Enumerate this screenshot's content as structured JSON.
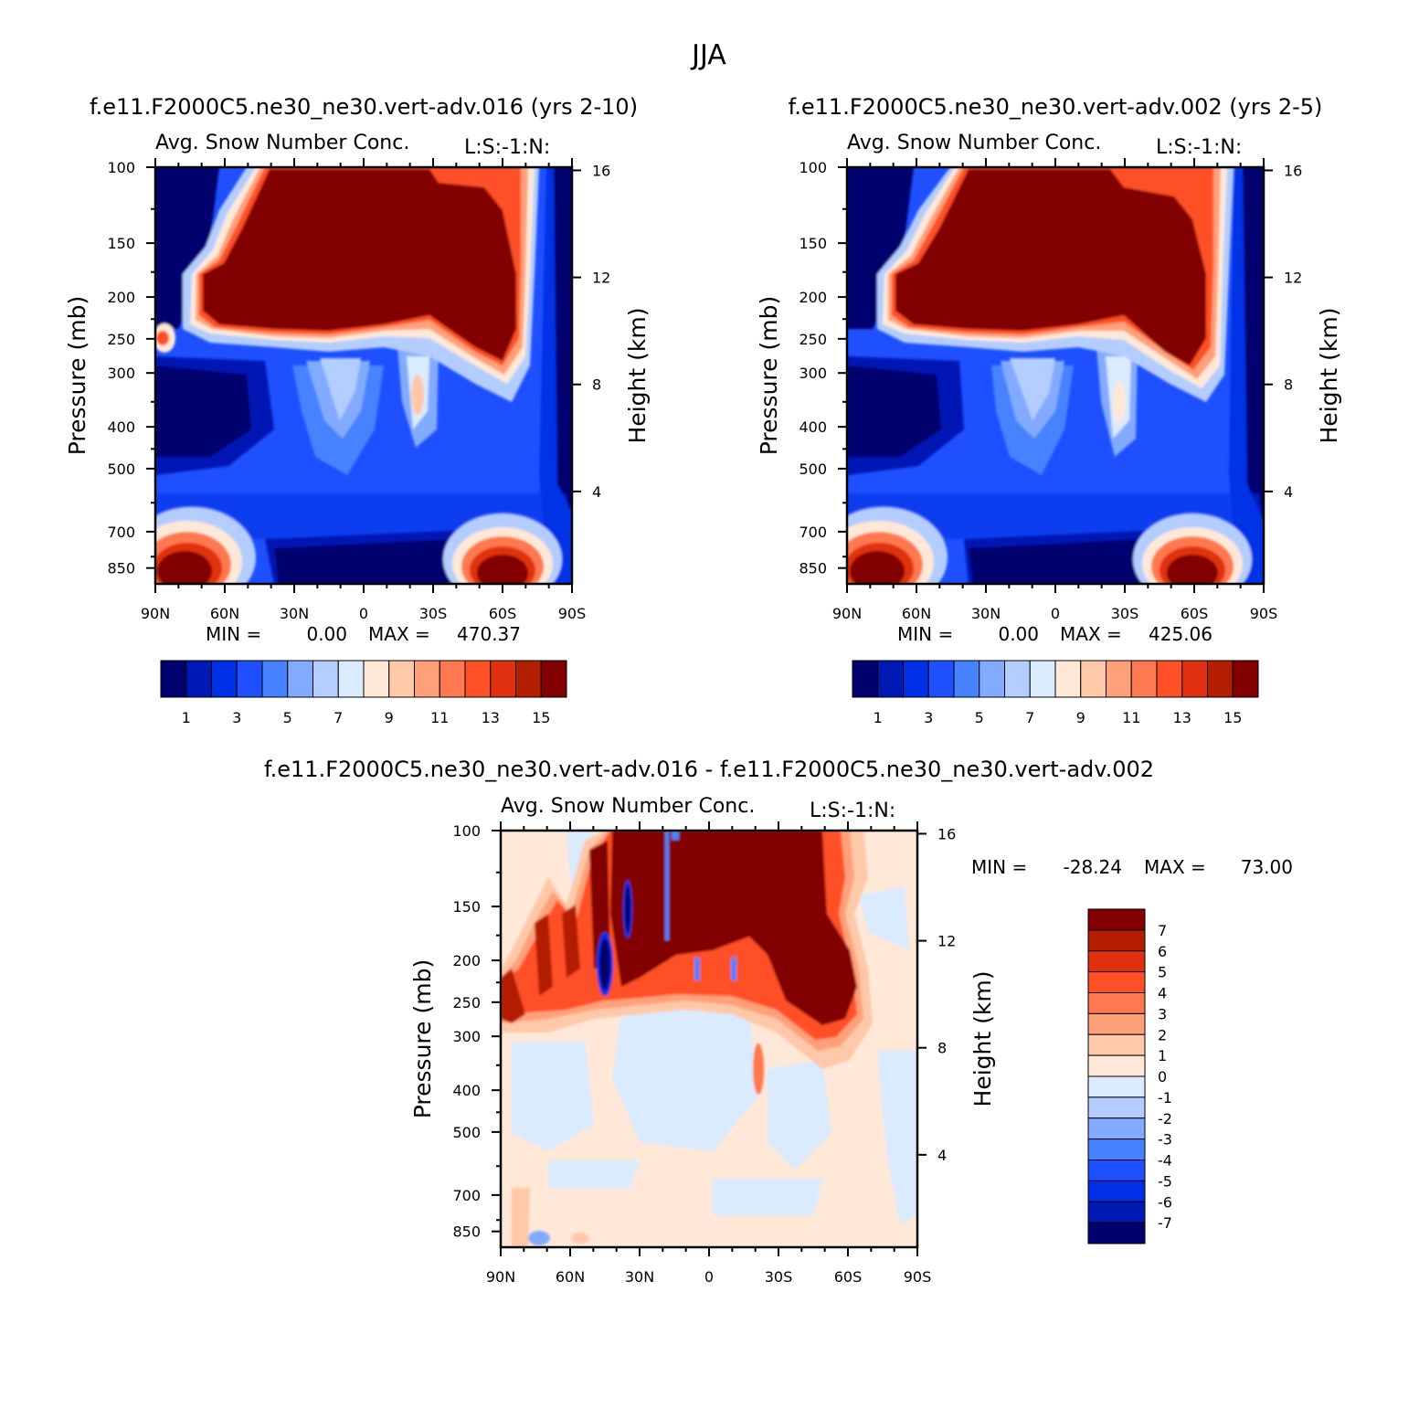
{
  "figure_title": "JJA",
  "panels": [
    {
      "title": "f.e11.F2000C5.ne30_ne30.vert-adv.016 (yrs 2-10)",
      "subtitle": "Avg. Snow Number Conc.",
      "subtitle_right": "L:S:-1:N:",
      "ylabel": "Pressure (mb)",
      "ylabel_right": "Height (km)",
      "min_label": "MIN =",
      "min_value": "0.00",
      "max_label": "MAX =",
      "max_value": "470.37",
      "colorbar_labels": [
        "1",
        "3",
        "5",
        "7",
        "9",
        "11",
        "13",
        "15"
      ]
    },
    {
      "title": "f.e11.F2000C5.ne30_ne30.vert-adv.002 (yrs 2-5)",
      "subtitle": "Avg. Snow Number Conc.",
      "subtitle_right": "L:S:-1:N:",
      "ylabel": "Pressure (mb)",
      "ylabel_right": "Height (km)",
      "min_label": "MIN =",
      "min_value": "0.00",
      "max_label": "MAX =",
      "max_value": "425.06",
      "colorbar_labels": [
        "1",
        "3",
        "5",
        "7",
        "9",
        "11",
        "13",
        "15"
      ]
    },
    {
      "title": "f.e11.F2000C5.ne30_ne30.vert-adv.016 - f.e11.F2000C5.ne30_ne30.vert-adv.002",
      "subtitle": "Avg. Snow Number Conc.",
      "subtitle_right": "L:S:-1:N:",
      "ylabel": "Pressure (mb)",
      "ylabel_right": "Height (km)",
      "min_label": "MIN =",
      "min_value": "-28.24",
      "max_label": "MAX =",
      "max_value": "73.00",
      "colorbar_labels": [
        "7",
        "6",
        "5",
        "4",
        "3",
        "2",
        "1",
        "0",
        "-1",
        "-2",
        "-3",
        "-4",
        "-5",
        "-6",
        "-7"
      ]
    }
  ],
  "chart_data": [
    {
      "type": "heatmap",
      "title": "f.e11.F2000C5.ne30_ne30.vert-adv.016 (yrs 2-10)",
      "subtitle": "Avg. Snow Number Conc.",
      "ylabel": "Pressure (mb)",
      "ylabel_right": "Height (km)",
      "x_ticks": [
        "90N",
        "60N",
        "30N",
        "0",
        "30S",
        "60S",
        "90S"
      ],
      "x_range": [
        90,
        -90
      ],
      "y_ticks": [
        100,
        150,
        200,
        250,
        300,
        400,
        500,
        700,
        850
      ],
      "y_range": [
        100,
        925
      ],
      "y_scale": "log",
      "y_right_ticks": [
        4,
        8,
        12,
        16
      ],
      "min": 0.0,
      "max": 470.37,
      "levels": [
        1,
        2,
        3,
        4,
        5,
        6,
        7,
        8,
        9,
        10,
        11,
        12,
        13,
        14,
        15
      ],
      "colors": [
        "#00006e",
        "#0018b4",
        "#0030e6",
        "#1e50ff",
        "#4682ff",
        "#82aaff",
        "#b4cdff",
        "#daeaff",
        "#ffe8d8",
        "#ffc8a8",
        "#ffa07a",
        "#ff7850",
        "#ff5028",
        "#e03010",
        "#b41e00",
        "#820000"
      ]
    },
    {
      "type": "heatmap",
      "title": "f.e11.F2000C5.ne30_ne30.vert-adv.002 (yrs 2-5)",
      "subtitle": "Avg. Snow Number Conc.",
      "ylabel": "Pressure (mb)",
      "ylabel_right": "Height (km)",
      "x_ticks": [
        "90N",
        "60N",
        "30N",
        "0",
        "30S",
        "60S",
        "90S"
      ],
      "x_range": [
        90,
        -90
      ],
      "y_ticks": [
        100,
        150,
        200,
        250,
        300,
        400,
        500,
        700,
        850
      ],
      "y_range": [
        100,
        925
      ],
      "y_scale": "log",
      "y_right_ticks": [
        4,
        8,
        12,
        16
      ],
      "min": 0.0,
      "max": 425.06,
      "levels": [
        1,
        2,
        3,
        4,
        5,
        6,
        7,
        8,
        9,
        10,
        11,
        12,
        13,
        14,
        15
      ],
      "colors": [
        "#00006e",
        "#0018b4",
        "#0030e6",
        "#1e50ff",
        "#4682ff",
        "#82aaff",
        "#b4cdff",
        "#daeaff",
        "#ffe8d8",
        "#ffc8a8",
        "#ffa07a",
        "#ff7850",
        "#ff5028",
        "#e03010",
        "#b41e00",
        "#820000"
      ]
    },
    {
      "type": "heatmap",
      "title": "f.e11.F2000C5.ne30_ne30.vert-adv.016 - f.e11.F2000C5.ne30_ne30.vert-adv.002",
      "subtitle": "Avg. Snow Number Conc.",
      "ylabel": "Pressure (mb)",
      "ylabel_right": "Height (km)",
      "x_ticks": [
        "90N",
        "60N",
        "30N",
        "0",
        "30S",
        "60S",
        "90S"
      ],
      "x_range": [
        90,
        -90
      ],
      "y_ticks": [
        100,
        150,
        200,
        250,
        300,
        400,
        500,
        700,
        850
      ],
      "y_range": [
        100,
        925
      ],
      "y_scale": "log",
      "y_right_ticks": [
        4,
        8,
        12,
        16
      ],
      "min": -28.24,
      "max": 73.0,
      "levels": [
        -7,
        -6,
        -5,
        -4,
        -3,
        -2,
        -1,
        0,
        1,
        2,
        3,
        4,
        5,
        6,
        7
      ],
      "colors": [
        "#00006e",
        "#0018b4",
        "#0030e6",
        "#1e50ff",
        "#4682ff",
        "#82aaff",
        "#b4cdff",
        "#daeaff",
        "#ffe8d8",
        "#ffc8a8",
        "#ffa07a",
        "#ff7850",
        "#ff5028",
        "#e03010",
        "#b41e00",
        "#820000"
      ]
    }
  ]
}
